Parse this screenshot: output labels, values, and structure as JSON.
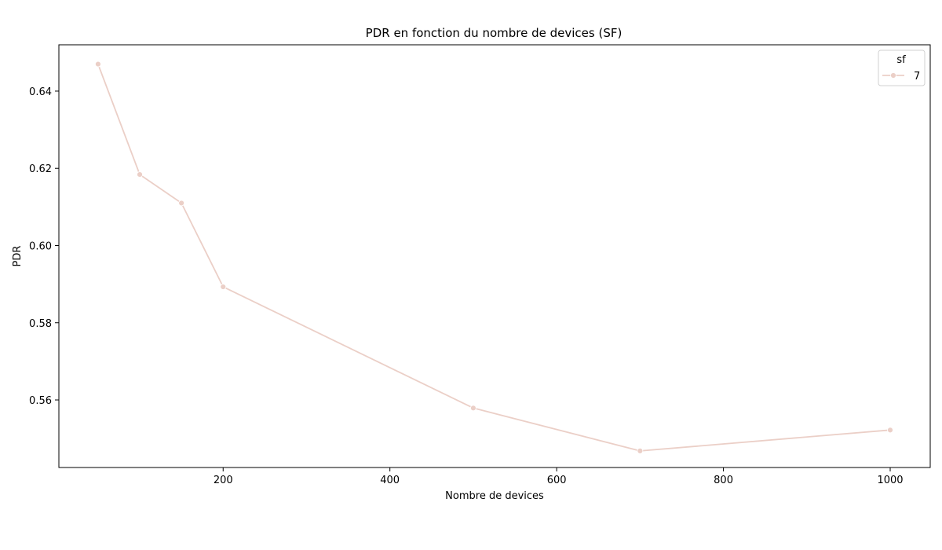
{
  "chart_data": {
    "type": "line",
    "title": "PDR en fonction du nombre de devices (SF)",
    "xlabel": "Nombre de devices",
    "ylabel": "PDR",
    "xlim": [
      3,
      1048
    ],
    "ylim": [
      0.5425,
      0.652
    ],
    "xticks": [
      200,
      400,
      600,
      800,
      1000
    ],
    "yticks": [
      0.56,
      0.58,
      0.6,
      0.62,
      0.64
    ],
    "ytick_labels": [
      "0.56",
      "0.58",
      "0.60",
      "0.62",
      "0.64"
    ],
    "grid": false,
    "legend": {
      "title": "sf",
      "placement": "top-right"
    },
    "series": [
      {
        "name": "7",
        "color": "#ebcfc7",
        "x": [
          50,
          100,
          150,
          200,
          500,
          700,
          1000
        ],
        "y": [
          0.647,
          0.6184,
          0.611,
          0.5893,
          0.5579,
          0.5468,
          0.5522
        ]
      }
    ]
  }
}
